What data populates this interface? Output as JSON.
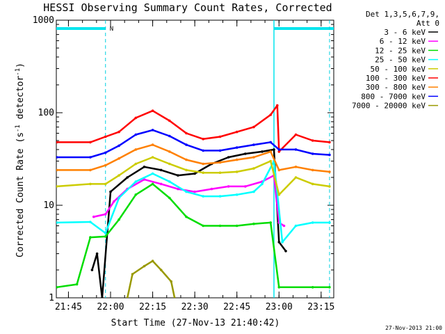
{
  "chart_data": {
    "type": "line",
    "title": "HESSI Observing Summary Count Rates, Corrected",
    "xlabel": "Start Time (27-Nov-13 21:40:42)",
    "ylabel": "Corrected Count Rate (s-1 detector-1)",
    "ylabel_parts": {
      "main": "Corrected Count Rate (s",
      "sup1": "-1",
      "mid": " detector",
      "sup2": "-1",
      "end": ")"
    },
    "timestamp": "27-Nov-2013 21:00",
    "legend_header": [
      "Det 1,3,5,6,7,9,",
      "Att 0"
    ],
    "yscale": "log",
    "ylim": [
      1,
      1000
    ],
    "ytick_values": [
      1,
      10,
      100,
      1000
    ],
    "ytick_labels": [
      "1",
      "10",
      "100",
      "1000"
    ],
    "xlim": [
      21.678,
      23.325
    ],
    "xtick_values": [
      21.75,
      22.0,
      22.25,
      22.5,
      22.75,
      23.0,
      23.25
    ],
    "xtick_labels": [
      "21:45",
      "22:00",
      "22:15",
      "22:30",
      "22:45",
      "23:00",
      "23:15"
    ],
    "grid": false,
    "legend_position": "outside-right",
    "flag_marker": "N",
    "flag_bars": [
      [
        21.678,
        21.97
      ],
      [
        22.97,
        23.325
      ]
    ],
    "dashed_lines": [
      21.97,
      23.3
    ],
    "solid_lines": [
      22.97
    ],
    "series": [
      {
        "name": "3 - 6 keV",
        "color": "#000000",
        "points": [
          [
            21.89,
            2.0
          ],
          [
            21.92,
            3.0
          ],
          [
            21.95,
            1.0
          ],
          [
            22.0,
            14
          ],
          [
            22.1,
            20
          ],
          [
            22.2,
            26
          ],
          [
            22.3,
            24
          ],
          [
            22.4,
            21
          ],
          [
            22.5,
            22
          ],
          [
            22.6,
            28
          ],
          [
            22.7,
            33
          ],
          [
            22.8,
            36
          ],
          [
            22.9,
            38
          ],
          [
            22.97,
            40
          ],
          [
            23.0,
            4
          ],
          [
            23.04,
            3.2
          ]
        ]
      },
      {
        "name": "6 - 12 keV",
        "color": "#ff00ff",
        "points": [
          [
            21.9,
            7.5
          ],
          [
            21.97,
            8
          ],
          [
            22.02,
            11
          ],
          [
            22.1,
            15
          ],
          [
            22.2,
            19
          ],
          [
            22.3,
            17
          ],
          [
            22.4,
            15
          ],
          [
            22.5,
            14
          ],
          [
            22.6,
            15
          ],
          [
            22.7,
            16
          ],
          [
            22.8,
            16
          ],
          [
            22.9,
            18
          ],
          [
            22.97,
            21
          ],
          [
            23.0,
            6.5
          ],
          [
            23.03,
            6
          ]
        ]
      },
      {
        "name": "12 - 25 keV",
        "color": "#00dd00",
        "points": [
          [
            21.68,
            1.3
          ],
          [
            21.8,
            1.4
          ],
          [
            21.88,
            4.5
          ],
          [
            21.97,
            4.6
          ],
          [
            22.05,
            7
          ],
          [
            22.15,
            13
          ],
          [
            22.25,
            17
          ],
          [
            22.35,
            12
          ],
          [
            22.45,
            7.5
          ],
          [
            22.55,
            6
          ],
          [
            22.65,
            6
          ],
          [
            22.75,
            6
          ],
          [
            22.85,
            6.3
          ],
          [
            22.95,
            6.5
          ],
          [
            23.0,
            1.3
          ],
          [
            23.2,
            1.3
          ],
          [
            23.3,
            1.3
          ]
        ]
      },
      {
        "name": "25 - 50 keV",
        "color": "#00ffff",
        "points": [
          [
            21.68,
            6.5
          ],
          [
            21.88,
            6.6
          ],
          [
            21.97,
            5
          ],
          [
            22.05,
            12
          ],
          [
            22.15,
            18
          ],
          [
            22.25,
            22
          ],
          [
            22.35,
            18
          ],
          [
            22.45,
            14
          ],
          [
            22.55,
            12.5
          ],
          [
            22.65,
            12.5
          ],
          [
            22.75,
            13
          ],
          [
            22.85,
            14
          ],
          [
            22.9,
            17
          ],
          [
            22.97,
            30
          ],
          [
            23.02,
            4
          ],
          [
            23.1,
            6
          ],
          [
            23.2,
            6.5
          ],
          [
            23.3,
            6.5
          ]
        ]
      },
      {
        "name": "50 - 100 keV",
        "color": "#cccc00",
        "points": [
          [
            21.68,
            16
          ],
          [
            21.88,
            17
          ],
          [
            21.97,
            17
          ],
          [
            22.05,
            21
          ],
          [
            22.15,
            28
          ],
          [
            22.25,
            33
          ],
          [
            22.35,
            28
          ],
          [
            22.45,
            24
          ],
          [
            22.55,
            22.5
          ],
          [
            22.65,
            22.5
          ],
          [
            22.75,
            23
          ],
          [
            22.85,
            25
          ],
          [
            22.95,
            30
          ],
          [
            23.0,
            13
          ],
          [
            23.1,
            20
          ],
          [
            23.2,
            17
          ],
          [
            23.3,
            16
          ]
        ]
      },
      {
        "name": "100 - 300 keV",
        "color": "#ff0000",
        "points": [
          [
            21.68,
            48
          ],
          [
            21.88,
            48
          ],
          [
            21.97,
            55
          ],
          [
            22.05,
            62
          ],
          [
            22.15,
            88
          ],
          [
            22.25,
            105
          ],
          [
            22.35,
            82
          ],
          [
            22.45,
            60
          ],
          [
            22.55,
            52
          ],
          [
            22.65,
            55
          ],
          [
            22.75,
            62
          ],
          [
            22.85,
            70
          ],
          [
            22.95,
            95
          ],
          [
            22.99,
            120
          ],
          [
            23.0,
            38
          ],
          [
            23.1,
            58
          ],
          [
            23.2,
            50
          ],
          [
            23.3,
            48
          ]
        ]
      },
      {
        "name": "300 - 800 keV",
        "color": "#ff8000",
        "points": [
          [
            21.68,
            24
          ],
          [
            21.88,
            24
          ],
          [
            21.97,
            27
          ],
          [
            22.05,
            32
          ],
          [
            22.15,
            40
          ],
          [
            22.25,
            45
          ],
          [
            22.35,
            38
          ],
          [
            22.45,
            31
          ],
          [
            22.55,
            28
          ],
          [
            22.65,
            29
          ],
          [
            22.75,
            31
          ],
          [
            22.85,
            33
          ],
          [
            22.95,
            38
          ],
          [
            23.0,
            24
          ],
          [
            23.1,
            26
          ],
          [
            23.2,
            24
          ],
          [
            23.3,
            23
          ]
        ]
      },
      {
        "name": "800 - 7000 keV",
        "color": "#0000ff",
        "points": [
          [
            21.68,
            33
          ],
          [
            21.88,
            33
          ],
          [
            21.97,
            37
          ],
          [
            22.05,
            44
          ],
          [
            22.15,
            58
          ],
          [
            22.25,
            65
          ],
          [
            22.35,
            56
          ],
          [
            22.45,
            45
          ],
          [
            22.55,
            39
          ],
          [
            22.65,
            39
          ],
          [
            22.75,
            42
          ],
          [
            22.85,
            45
          ],
          [
            22.95,
            48
          ],
          [
            23.0,
            40
          ],
          [
            23.1,
            40
          ],
          [
            23.2,
            36
          ],
          [
            23.3,
            35
          ]
        ]
      },
      {
        "name": "7000 - 20000 keV",
        "color": "#999900",
        "points": [
          [
            22.1,
            1.0
          ],
          [
            22.13,
            1.8
          ],
          [
            22.2,
            2.2
          ],
          [
            22.25,
            2.5
          ],
          [
            22.3,
            2.0
          ],
          [
            22.36,
            1.5
          ],
          [
            22.38,
            1.0
          ]
        ]
      }
    ]
  }
}
